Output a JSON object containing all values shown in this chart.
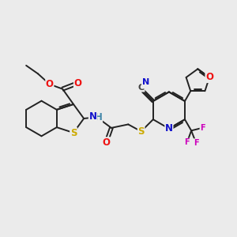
{
  "bg_color": "#ebebeb",
  "bond_color": "#222222",
  "bond_width": 1.4,
  "atom_colors": {
    "O": "#ee1111",
    "N": "#1111cc",
    "S": "#ccaa00",
    "F": "#cc00bb",
    "H_color": "#4488aa",
    "C_gray": "#444444",
    "N_blue": "#1111cc"
  },
  "fs_main": 8.5,
  "fs_small": 7.0,
  "fs_label": 7.5
}
